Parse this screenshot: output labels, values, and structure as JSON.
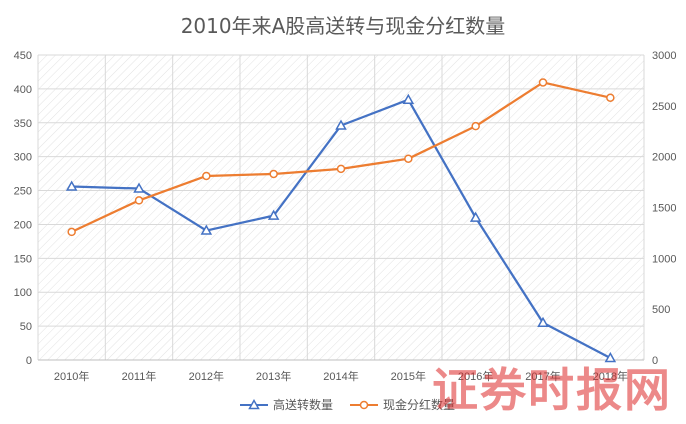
{
  "chart_data": {
    "type": "line",
    "title": "2010年来A股高送转与现金分红数量",
    "categories": [
      "2010年",
      "2011年",
      "2012年",
      "2013年",
      "2014年",
      "2015年",
      "2016年",
      "2017年",
      "2018年"
    ],
    "series": [
      {
        "name": "高送转数量",
        "axis": "left",
        "color": "#4472c4",
        "marker": "triangle",
        "values": [
          256,
          253,
          191,
          213,
          346,
          384,
          210,
          55,
          3
        ]
      },
      {
        "name": "现金分红数量",
        "axis": "right",
        "color": "#ed7d31",
        "marker": "circle",
        "values": [
          1260,
          1570,
          1810,
          1830,
          1880,
          1980,
          2300,
          2730,
          2580
        ]
      }
    ],
    "y_left": {
      "min": 0,
      "max": 450,
      "ticks": [
        0,
        50,
        100,
        150,
        200,
        250,
        300,
        350,
        400,
        450
      ]
    },
    "y_right": {
      "min": 0,
      "max": 3000,
      "ticks": [
        0,
        500,
        1000,
        1500,
        2000,
        2500,
        3000
      ]
    },
    "grid": true,
    "legend_position": "bottom"
  },
  "watermark": "证券时报网"
}
